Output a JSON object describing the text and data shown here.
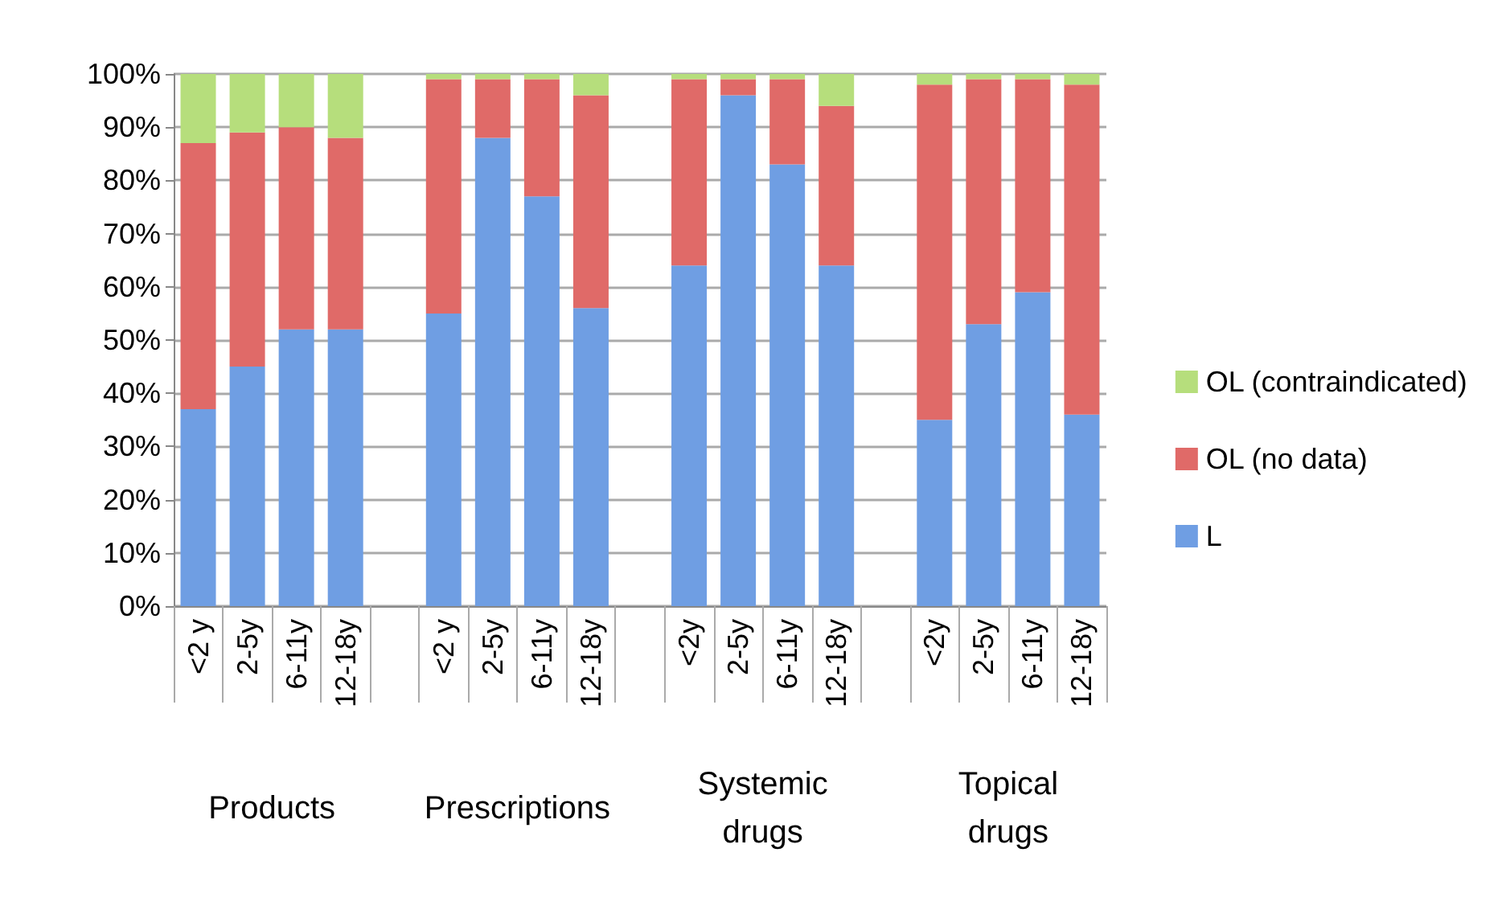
{
  "chart_data": {
    "type": "bar",
    "stacked": true,
    "categories": [
      "<2 y",
      "2-5y",
      "6-11y",
      "12-18y",
      null,
      "<2 y",
      "2-5y",
      "6-11y",
      "12-18y",
      null,
      "<2y",
      "2-5y",
      "6-11y",
      "12-18y",
      null,
      "<2y",
      "2-5y",
      "6-11y",
      "12-18y"
    ],
    "series": [
      {
        "name": "L",
        "color": "#6f9ee3",
        "values": [
          37,
          45,
          52,
          52,
          null,
          55,
          88,
          77,
          56,
          null,
          64,
          96,
          83,
          64,
          null,
          35,
          53,
          59,
          36
        ]
      },
      {
        "name": "OL (no data)",
        "color": "#e06a68",
        "values": [
          50,
          44,
          38,
          36,
          null,
          44,
          11,
          22,
          40,
          null,
          35,
          3,
          16,
          30,
          null,
          63,
          46,
          40,
          62
        ]
      },
      {
        "name": "OL (contraindicated)",
        "color": "#b6de7c",
        "values": [
          13,
          11,
          10,
          12,
          null,
          1,
          1,
          1,
          4,
          null,
          1,
          1,
          1,
          6,
          null,
          2,
          1,
          1,
          2
        ]
      }
    ],
    "annotations": [
      "Products",
      "Prescriptions",
      "Systemic drugs",
      "Topical drugs"
    ],
    "ylim": [
      0,
      100
    ],
    "yticks": [
      {
        "value": 0,
        "label": "0%"
      },
      {
        "value": 10,
        "label": "10%"
      },
      {
        "value": 20,
        "label": "20%"
      },
      {
        "value": 30,
        "label": "30%"
      },
      {
        "value": 40,
        "label": "40%"
      },
      {
        "value": 50,
        "label": "50%"
      },
      {
        "value": 60,
        "label": "60%"
      },
      {
        "value": 70,
        "label": "70%"
      },
      {
        "value": 80,
        "label": "80%"
      },
      {
        "value": 90,
        "label": "90%"
      },
      {
        "value": 100,
        "label": "100%"
      }
    ],
    "grid": "y",
    "legend": "right"
  }
}
